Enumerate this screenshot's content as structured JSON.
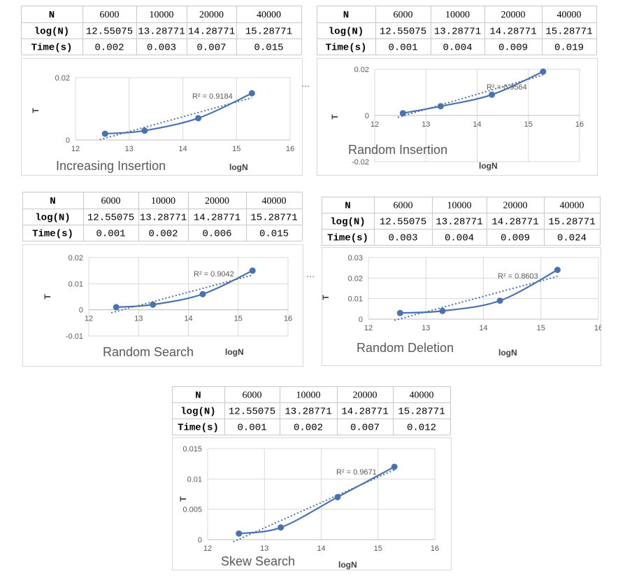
{
  "panels": [
    {
      "table": {
        "header": [
          "N",
          "6000",
          "10000",
          "20000",
          "40000"
        ],
        "rows": [
          {
            "label": "log(N)",
            "cells": [
              "12.55075",
              "13.28771",
              "14.28771",
              "15.28771"
            ]
          },
          {
            "label": "Time(s)",
            "cells": [
              "0.002",
              "0.003",
              "0.007",
              "0.015"
            ]
          }
        ]
      },
      "chart_data": {
        "type": "scatter",
        "title": "Increasing Insertion",
        "xlabel": "logN",
        "ylabel": "T",
        "x": [
          12.55075,
          13.28771,
          14.28771,
          15.28771
        ],
        "y": [
          0.002,
          0.003,
          0.007,
          0.015
        ],
        "xlim": [
          12,
          16
        ],
        "xticks": [
          "12",
          "13",
          "14",
          "15",
          "16"
        ],
        "ylim": [
          0,
          0.02
        ],
        "yticks": [
          "0",
          "0.02"
        ],
        "trendline": "linear",
        "r_squared": "R² = 0.9184",
        "grid": true,
        "series_color": "#4a72b0"
      }
    },
    {
      "table": {
        "header": [
          "N",
          "6000",
          "10000",
          "20000",
          "40000"
        ],
        "rows": [
          {
            "label": "log(N)",
            "cells": [
              "12.55075",
              "13.28771",
              "14.28771",
              "15.28771"
            ]
          },
          {
            "label": "Time(s)",
            "cells": [
              "0.001",
              "0.004",
              "0.009",
              "0.019"
            ]
          }
        ]
      },
      "chart_data": {
        "type": "scatter",
        "title": "Random Insertion",
        "xlabel": "logN",
        "ylabel": "T",
        "x": [
          12.55075,
          13.28771,
          14.28771,
          15.28771
        ],
        "y": [
          0.001,
          0.004,
          0.009,
          0.019
        ],
        "xlim": [
          12,
          16
        ],
        "xticks": [
          "12",
          "13",
          "14",
          "15",
          "16"
        ],
        "ylim": [
          -0.02,
          0.02
        ],
        "yticks": [
          "-0.02",
          "0",
          "0.02"
        ],
        "trendline": "linear",
        "r_squared": "R² = 0.9564",
        "grid": true,
        "series_color": "#4a72b0"
      }
    },
    {
      "table": {
        "header": [
          "N",
          "6000",
          "10000",
          "20000",
          "40000"
        ],
        "rows": [
          {
            "label": "log(N)",
            "cells": [
              "12.55075",
              "13.28771",
              "14.28771",
              "15.28771"
            ]
          },
          {
            "label": "Time(s)",
            "cells": [
              "0.001",
              "0.002",
              "0.006",
              "0.015"
            ]
          }
        ]
      },
      "chart_data": {
        "type": "scatter",
        "title": "Random Search",
        "xlabel": "logN",
        "ylabel": "T",
        "x": [
          12.55075,
          13.28771,
          14.28771,
          15.28771
        ],
        "y": [
          0.001,
          0.002,
          0.006,
          0.015
        ],
        "xlim": [
          12,
          16
        ],
        "xticks": [
          "12",
          "13",
          "14",
          "15",
          "16"
        ],
        "ylim": [
          -0.01,
          0.02
        ],
        "yticks": [
          "-0.01",
          "0",
          "0.01",
          "0.02"
        ],
        "trendline": "linear",
        "r_squared": "R² = 0.9042",
        "grid": true,
        "series_color": "#4a72b0"
      }
    },
    {
      "table": {
        "header": [
          "N",
          "6000",
          "10000",
          "20000",
          "40000"
        ],
        "rows": [
          {
            "label": "log(N)",
            "cells": [
              "12.55075",
              "13.28771",
              "14.28771",
              "15.28771"
            ]
          },
          {
            "label": "Time(s)",
            "cells": [
              "0.003",
              "0.004",
              "0.009",
              "0.024"
            ]
          }
        ]
      },
      "chart_data": {
        "type": "scatter",
        "title": "Random Deletion",
        "xlabel": "logN",
        "ylabel": "T",
        "x": [
          12.55075,
          13.28771,
          14.28771,
          15.28771
        ],
        "y": [
          0.003,
          0.004,
          0.009,
          0.024
        ],
        "xlim": [
          12,
          16
        ],
        "xticks": [
          "12",
          "13",
          "14",
          "15",
          "16"
        ],
        "ylim": [
          0,
          0.03
        ],
        "yticks": [
          "0",
          "0.01",
          "0.02",
          "0.03"
        ],
        "trendline": "linear",
        "r_squared": "R² = 0.8603",
        "grid": true,
        "series_color": "#4a72b0"
      }
    },
    {
      "table": {
        "header": [
          "N",
          "6000",
          "10000",
          "20000",
          "40000"
        ],
        "rows": [
          {
            "label": "log(N)",
            "cells": [
              "12.55075",
              "13.28771",
              "14.28771",
              "15.28771"
            ]
          },
          {
            "label": "Time(s)",
            "cells": [
              "0.001",
              "0.002",
              "0.007",
              "0.012"
            ]
          }
        ]
      },
      "chart_data": {
        "type": "scatter",
        "title": "Skew Search",
        "xlabel": "logN",
        "ylabel": "T",
        "x": [
          12.55075,
          13.28771,
          14.28771,
          15.28771
        ],
        "y": [
          0.001,
          0.002,
          0.007,
          0.012
        ],
        "xlim": [
          12,
          16
        ],
        "xticks": [
          "12",
          "13",
          "14",
          "15",
          "16"
        ],
        "ylim": [
          0,
          0.015
        ],
        "yticks": [
          "0",
          "0.005",
          "0.01",
          "0.015"
        ],
        "trendline": "linear",
        "r_squared": "R² = 0.9671",
        "grid": true,
        "series_color": "#4a72b0"
      }
    }
  ]
}
